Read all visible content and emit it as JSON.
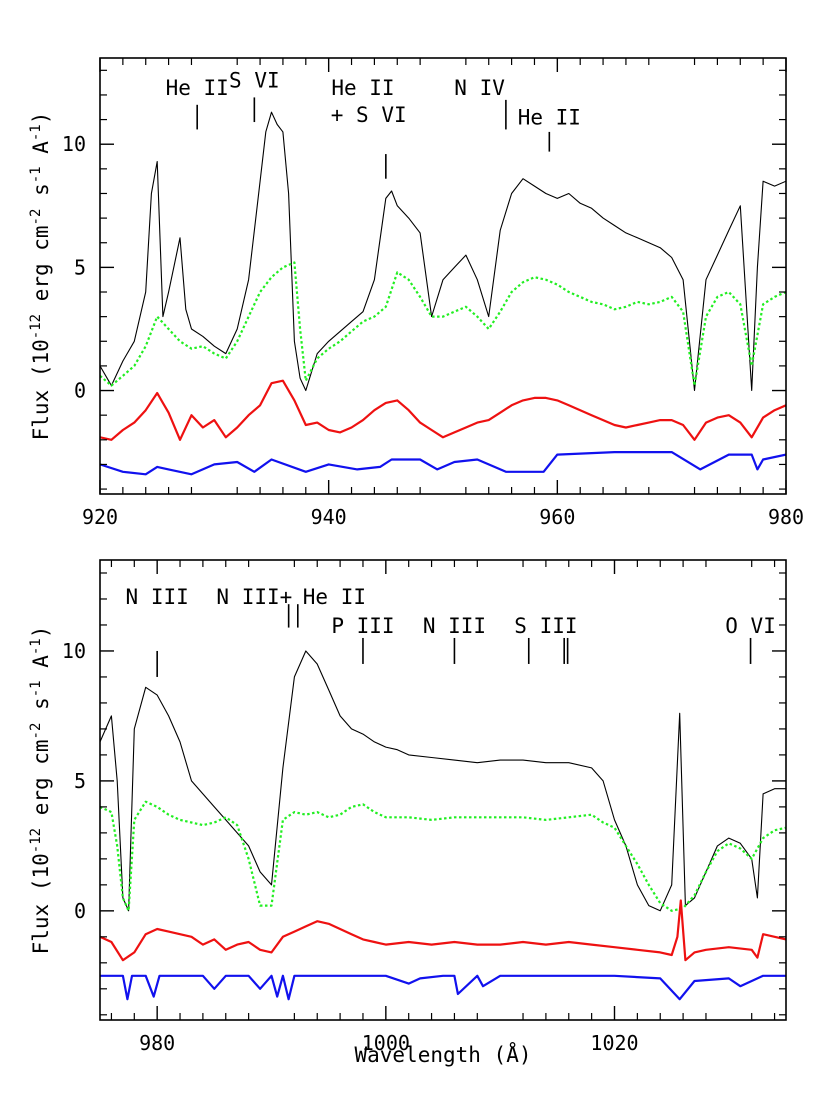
{
  "chart_data": [
    {
      "type": "line",
      "panel": "top",
      "xlim": [
        920,
        980
      ],
      "ylim": [
        -4.2,
        13.5
      ],
      "xticks": [
        "920",
        "940",
        "960",
        "980"
      ],
      "xtick_values": [
        920,
        940,
        960,
        980
      ],
      "yticks": [
        "0",
        "5",
        "10"
      ],
      "ytick_values": [
        0,
        5,
        10
      ],
      "xlabel": "",
      "ylabel": "Flux (10^-12 erg cm^-2 s^-1 A^-1)",
      "grid": false,
      "legend": "none",
      "line_labels": [
        {
          "text": "He II",
          "x": 928.5,
          "tick_y": [
            10.6,
            11.6
          ],
          "label_y": 12.0
        },
        {
          "text": "S VI",
          "x": 933.5,
          "tick_y": [
            10.9,
            11.9
          ],
          "label_y": 12.3
        },
        {
          "text": "He II",
          "x": 945.0,
          "tick_y": [
            8.6,
            9.6
          ],
          "label_y": 12.0,
          "label_x": 943.0
        },
        {
          "text": "+ S VI",
          "x": 945.0,
          "tick_y": [],
          "label_y": 10.9,
          "label_x": 943.5
        },
        {
          "text": "N IV",
          "x": 955.5,
          "tick_y": [
            10.6,
            11.8
          ],
          "label_y": 12.0,
          "label_x": 953.2
        },
        {
          "text": "He II",
          "x": 959.3,
          "tick_y": [
            9.7,
            10.5
          ],
          "label_y": 10.8
        }
      ],
      "series": [
        {
          "name": "",
          "color": "#000000",
          "style": "solid",
          "x": [
            920,
            921,
            922,
            923,
            924,
            924.5,
            925,
            925.5,
            926,
            927,
            927.5,
            928,
            929,
            930,
            931,
            932,
            933,
            934,
            934.5,
            935,
            935.5,
            936,
            936.5,
            937,
            937.5,
            938,
            939,
            940,
            941,
            942,
            943,
            944,
            945,
            945.5,
            946,
            947,
            948,
            949,
            950,
            951,
            952,
            953,
            954,
            955,
            956,
            957,
            958,
            959,
            960,
            961,
            962,
            963,
            964,
            965,
            966,
            967,
            968,
            969,
            970,
            971,
            972,
            973,
            974,
            975,
            976,
            977,
            977.5,
            978,
            979,
            980
          ],
          "y": [
            1.0,
            0.2,
            1.2,
            2.0,
            4.0,
            8.0,
            9.3,
            3.0,
            4.0,
            6.2,
            3.3,
            2.5,
            2.2,
            1.8,
            1.5,
            2.5,
            4.5,
            8.5,
            10.5,
            11.3,
            10.8,
            10.5,
            8.0,
            2.0,
            0.5,
            0.0,
            1.5,
            2.0,
            2.4,
            2.8,
            3.2,
            4.5,
            7.8,
            8.1,
            7.5,
            7.0,
            6.4,
            3.0,
            4.5,
            5.0,
            5.5,
            4.5,
            3.0,
            6.5,
            8.0,
            8.6,
            8.3,
            8.0,
            7.8,
            8.0,
            7.6,
            7.4,
            7.0,
            6.7,
            6.4,
            6.2,
            6.0,
            5.8,
            5.4,
            4.5,
            0.0,
            4.5,
            5.5,
            6.5,
            7.5,
            0.0,
            5.0,
            8.5,
            8.3,
            8.5
          ]
        },
        {
          "name": "",
          "color": "#22ee22",
          "style": "dotted",
          "x": [
            920,
            921,
            922,
            923,
            924,
            925,
            926,
            927,
            928,
            929,
            930,
            931,
            932,
            933,
            934,
            935,
            936,
            937,
            937.5,
            938,
            939,
            940,
            941,
            942,
            943,
            944,
            945,
            946,
            947,
            948,
            949,
            950,
            951,
            952,
            953,
            954,
            955,
            956,
            957,
            958,
            959,
            960,
            961,
            962,
            963,
            964,
            965,
            966,
            967,
            968,
            969,
            970,
            971,
            972,
            973,
            974,
            975,
            976,
            977,
            978,
            979,
            980
          ],
          "y": [
            0.6,
            0.2,
            0.6,
            1.0,
            1.8,
            3.0,
            2.5,
            2.0,
            1.7,
            1.8,
            1.5,
            1.3,
            2.0,
            3.0,
            4.0,
            4.6,
            5.0,
            5.2,
            2.5,
            0.4,
            1.3,
            1.7,
            2.0,
            2.4,
            2.8,
            3.0,
            3.4,
            4.8,
            4.5,
            3.8,
            3.0,
            3.0,
            3.2,
            3.4,
            3.0,
            2.5,
            3.2,
            4.0,
            4.4,
            4.6,
            4.5,
            4.3,
            4.0,
            3.8,
            3.6,
            3.5,
            3.3,
            3.4,
            3.6,
            3.5,
            3.6,
            3.8,
            3.2,
            0.2,
            3.0,
            3.8,
            4.0,
            3.5,
            1.0,
            3.5,
            3.8,
            4.0
          ]
        },
        {
          "name": "",
          "color": "#ee1111",
          "style": "solid",
          "x": [
            920,
            921,
            922,
            923,
            924,
            925,
            925.5,
            926,
            927,
            928,
            929,
            930,
            931,
            932,
            933,
            934,
            935,
            936,
            937,
            938,
            939,
            940,
            941,
            942,
            943,
            944,
            945,
            946,
            947,
            948,
            949,
            950,
            951,
            952,
            953,
            954,
            955,
            956,
            957,
            958,
            959,
            960,
            961,
            962,
            963,
            964,
            965,
            966,
            967,
            968,
            969,
            970,
            971,
            972,
            973,
            974,
            975,
            976,
            977,
            978,
            979,
            980
          ],
          "y": [
            -1.9,
            -2.0,
            -1.6,
            -1.3,
            -0.8,
            -0.1,
            -0.5,
            -0.9,
            -2.0,
            -1.0,
            -1.5,
            -1.2,
            -1.9,
            -1.5,
            -1.0,
            -0.6,
            0.3,
            0.4,
            -0.4,
            -1.4,
            -1.3,
            -1.6,
            -1.7,
            -1.5,
            -1.2,
            -0.8,
            -0.5,
            -0.4,
            -0.8,
            -1.3,
            -1.6,
            -1.9,
            -1.7,
            -1.5,
            -1.3,
            -1.2,
            -0.9,
            -0.6,
            -0.4,
            -0.3,
            -0.3,
            -0.4,
            -0.6,
            -0.8,
            -1.0,
            -1.2,
            -1.4,
            -1.5,
            -1.4,
            -1.3,
            -1.2,
            -1.2,
            -1.4,
            -2.0,
            -1.3,
            -1.1,
            -1.0,
            -1.3,
            -1.9,
            -1.1,
            -0.8,
            -0.6
          ]
        },
        {
          "name": "",
          "color": "#1111ee",
          "style": "solid",
          "x": [
            920,
            922,
            924,
            925,
            926,
            928,
            930,
            932,
            933.5,
            935,
            938,
            940,
            942.5,
            944.5,
            945.5,
            948,
            949.5,
            951,
            953,
            955.5,
            958.8,
            960,
            965,
            970,
            972.5,
            975,
            977,
            977.5,
            978,
            980
          ],
          "y": [
            -3.0,
            -3.3,
            -3.4,
            -3.1,
            -3.2,
            -3.4,
            -3.0,
            -2.9,
            -3.3,
            -2.8,
            -3.3,
            -3.0,
            -3.2,
            -3.1,
            -2.8,
            -2.8,
            -3.2,
            -2.9,
            -2.8,
            -3.3,
            -3.3,
            -2.6,
            -2.5,
            -2.5,
            -3.2,
            -2.6,
            -2.6,
            -3.2,
            -2.8,
            -2.6
          ]
        }
      ]
    },
    {
      "type": "line",
      "panel": "bottom",
      "xlim": [
        975,
        1035
      ],
      "ylim": [
        -4.2,
        13.5
      ],
      "xticks": [
        "980",
        "1000",
        "1020"
      ],
      "xtick_values": [
        980,
        1000,
        1020
      ],
      "yticks": [
        "0",
        "5",
        "10"
      ],
      "ytick_values": [
        0,
        5,
        10
      ],
      "xlabel": "Wavelength (Å)",
      "ylabel": "Flux (10^-12 erg cm^-2 s^-1 A^-1)",
      "grid": false,
      "legend": "none",
      "line_labels": [
        {
          "text": "N III",
          "x": 980.0,
          "tick_y": [
            9.0,
            10.0
          ],
          "label_y": 11.8
        },
        {
          "text": "N III+",
          "x": 991.5,
          "tick_y": [
            10.9,
            11.8
          ],
          "label_y": 11.8,
          "label_x": 988.5
        },
        {
          "text": "He II",
          "x": 992.3,
          "tick_y": [
            10.9,
            11.8
          ],
          "label_y": 11.8,
          "label_x": 995.5
        },
        {
          "text": "P III",
          "x": 998.0,
          "tick_y": [
            9.5,
            10.5
          ],
          "label_y": 10.7
        },
        {
          "text": "N III",
          "x": 1006.0,
          "tick_y": [
            9.5,
            10.5
          ],
          "label_y": 10.7
        },
        {
          "text": "S III",
          "x": 1012.5,
          "tick_y": [
            9.5,
            10.5
          ],
          "label_y": 10.7,
          "label_x": 1014.0
        },
        {
          "text": "",
          "x": 1015.6,
          "tick_y": [
            9.5,
            10.5
          ],
          "label_y": 10.7
        },
        {
          "text": "",
          "x": 1015.9,
          "tick_y": [
            9.5,
            10.5
          ],
          "label_y": 10.7
        },
        {
          "text": "O VI",
          "x": 1031.9,
          "tick_y": [
            9.5,
            10.5
          ],
          "label_y": 10.7
        }
      ],
      "series": [
        {
          "name": "",
          "color": "#000000",
          "style": "solid",
          "x": [
            975,
            976,
            976.5,
            977,
            977.5,
            978,
            979,
            980,
            981,
            982,
            983,
            984,
            985,
            986,
            987,
            988,
            989,
            990,
            991,
            992,
            993,
            994,
            995,
            996,
            997,
            998,
            999,
            1000,
            1001,
            1002,
            1004,
            1006,
            1008,
            1010,
            1012,
            1014,
            1016,
            1018,
            1019,
            1020,
            1021,
            1022,
            1023,
            1024,
            1025,
            1025.7,
            1026.2,
            1027,
            1028,
            1029,
            1030,
            1031,
            1032,
            1032.5,
            1033,
            1034,
            1035
          ],
          "y": [
            6.5,
            7.5,
            5.0,
            0.5,
            0.0,
            7.0,
            8.6,
            8.3,
            7.5,
            6.5,
            5.0,
            4.5,
            4.0,
            3.5,
            3.0,
            2.5,
            1.5,
            1.0,
            5.5,
            9.0,
            10.0,
            9.5,
            8.5,
            7.5,
            7.0,
            6.8,
            6.5,
            6.3,
            6.2,
            6.0,
            5.9,
            5.8,
            5.7,
            5.8,
            5.8,
            5.7,
            5.7,
            5.5,
            5.0,
            3.5,
            2.5,
            1.0,
            0.2,
            0.0,
            1.0,
            7.6,
            0.2,
            0.5,
            1.5,
            2.5,
            2.8,
            2.6,
            2.0,
            0.5,
            4.5,
            4.7,
            4.7
          ]
        },
        {
          "name": "",
          "color": "#22ee22",
          "style": "dotted",
          "x": [
            975,
            976,
            976.5,
            977,
            977.5,
            978,
            979,
            980,
            981,
            982,
            983,
            984,
            985,
            986,
            987,
            988,
            989,
            990,
            991,
            992,
            993,
            994,
            995,
            996,
            997,
            998,
            999,
            1000,
            1002,
            1004,
            1006,
            1008,
            1010,
            1012,
            1014,
            1016,
            1018,
            1019,
            1020,
            1021,
            1022,
            1023,
            1024,
            1025,
            1026,
            1027,
            1028,
            1029,
            1030,
            1031,
            1032,
            1033,
            1034,
            1035
          ],
          "y": [
            4.0,
            3.8,
            2.5,
            0.5,
            0.0,
            3.5,
            4.2,
            4.0,
            3.7,
            3.5,
            3.4,
            3.3,
            3.4,
            3.6,
            3.3,
            2.0,
            0.2,
            0.2,
            3.5,
            3.8,
            3.7,
            3.8,
            3.6,
            3.7,
            4.0,
            4.1,
            3.8,
            3.6,
            3.6,
            3.5,
            3.6,
            3.6,
            3.6,
            3.6,
            3.5,
            3.6,
            3.7,
            3.4,
            3.2,
            2.5,
            1.8,
            1.0,
            0.3,
            0.0,
            0.1,
            0.6,
            1.5,
            2.3,
            2.6,
            2.4,
            2.0,
            2.8,
            3.1,
            3.2
          ]
        },
        {
          "name": "",
          "color": "#ee1111",
          "style": "solid",
          "x": [
            975,
            976,
            977,
            978,
            979,
            980,
            981,
            982,
            983,
            984,
            985,
            986,
            987,
            988,
            989,
            990,
            991,
            992,
            993,
            994,
            995,
            996,
            997,
            998,
            999,
            1000,
            1002,
            1004,
            1006,
            1008,
            1010,
            1012,
            1014,
            1016,
            1018,
            1020,
            1022,
            1024,
            1025,
            1025.5,
            1025.8,
            1026.2,
            1027,
            1028,
            1030,
            1032,
            1032.5,
            1033,
            1034,
            1035
          ],
          "y": [
            -1.0,
            -1.2,
            -1.9,
            -1.6,
            -0.9,
            -0.7,
            -0.8,
            -0.9,
            -1.0,
            -1.3,
            -1.1,
            -1.5,
            -1.3,
            -1.2,
            -1.5,
            -1.6,
            -1.0,
            -0.8,
            -0.6,
            -0.4,
            -0.5,
            -0.7,
            -0.9,
            -1.1,
            -1.2,
            -1.3,
            -1.2,
            -1.3,
            -1.2,
            -1.3,
            -1.3,
            -1.2,
            -1.3,
            -1.2,
            -1.3,
            -1.4,
            -1.5,
            -1.6,
            -1.7,
            -1.0,
            0.4,
            -1.9,
            -1.6,
            -1.5,
            -1.4,
            -1.5,
            -1.8,
            -0.9,
            -1.0,
            -1.1
          ]
        },
        {
          "name": "",
          "color": "#1111ee",
          "style": "solid",
          "x": [
            975,
            977,
            977.4,
            977.8,
            979,
            979.7,
            980.2,
            981,
            984,
            985,
            986,
            988,
            989,
            990,
            990.5,
            991,
            991.5,
            992,
            995,
            1000,
            1002,
            1003,
            1005,
            1006,
            1006.3,
            1008,
            1008.5,
            1010,
            1020,
            1024,
            1025.7,
            1027,
            1030,
            1031,
            1033,
            1035
          ],
          "y": [
            -2.5,
            -2.5,
            -3.4,
            -2.5,
            -2.5,
            -3.3,
            -2.5,
            -2.5,
            -2.5,
            -3.0,
            -2.5,
            -2.5,
            -3.0,
            -2.5,
            -3.3,
            -2.5,
            -3.4,
            -2.5,
            -2.5,
            -2.5,
            -2.8,
            -2.6,
            -2.5,
            -2.5,
            -3.2,
            -2.5,
            -2.9,
            -2.5,
            -2.5,
            -2.6,
            -3.4,
            -2.7,
            -2.6,
            -2.9,
            -2.5,
            -2.5
          ]
        }
      ]
    }
  ]
}
